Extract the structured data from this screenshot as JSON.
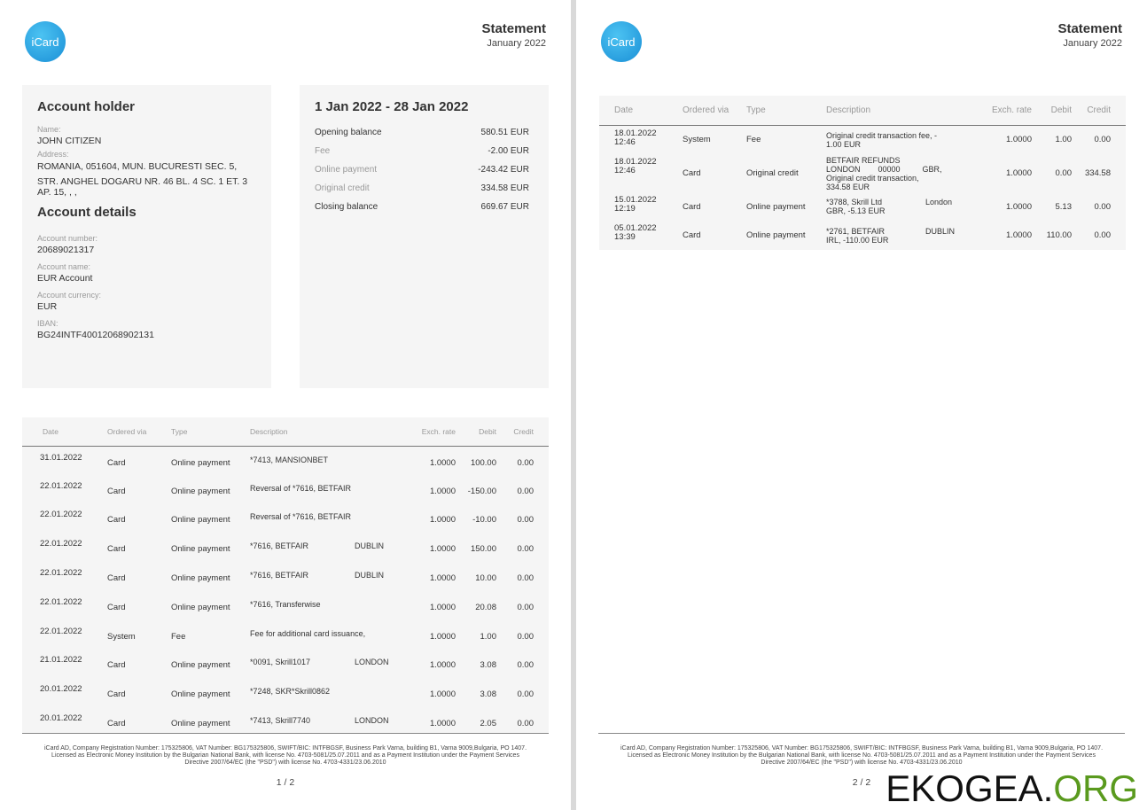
{
  "header": {
    "logo": "iCard",
    "title": "Statement",
    "month": "January 2022"
  },
  "account_holder": {
    "title": "Account holder",
    "name_label": "Name:",
    "name": "JOHN CITIZEN",
    "address_label": "Address:",
    "address_line1": "ROMANIA, 051604, MUN. BUCURESTI SEC. 5,",
    "address_line2": "STR. ANGHEL DOGARU NR. 46 BL. 4 SC. 1 ET. 3",
    "address_line3": "AP. 15, , ,"
  },
  "account_details": {
    "title": "Account details",
    "number_label": "Account number:",
    "number": "20689021317",
    "name_label": "Account name:",
    "name": "EUR Account",
    "currency_label": "Account currency:",
    "currency": "EUR",
    "iban_label": "IBAN:",
    "iban": "BG24INTF40012068902131"
  },
  "summary": {
    "period": "1 Jan 2022 - 28 Jan 2022",
    "rows": [
      {
        "label": "Opening balance",
        "value": "580.51 EUR",
        "muted": false
      },
      {
        "label": "Fee",
        "value": "-2.00 EUR",
        "muted": true
      },
      {
        "label": "Online payment",
        "value": "-243.42 EUR",
        "muted": true
      },
      {
        "label": "Original credit",
        "value": "334.58 EUR",
        "muted": true
      },
      {
        "label": "Closing balance",
        "value": "669.67 EUR",
        "muted": false
      }
    ]
  },
  "columns": [
    "Date",
    "Ordered via",
    "Type",
    "Description",
    "Exch. rate",
    "Debit",
    "Credit"
  ],
  "page1_rows": [
    [
      "31.01.2022",
      "Card",
      "Online payment",
      "*7413, MANSIONBET",
      "",
      "1.0000",
      "100.00",
      "0.00"
    ],
    [
      "22.01.2022",
      "Card",
      "Online payment",
      "Reversal of *7616, BETFAIR",
      "",
      "1.0000",
      "-150.00",
      "0.00"
    ],
    [
      "22.01.2022",
      "Card",
      "Online payment",
      "Reversal of *7616, BETFAIR",
      "",
      "1.0000",
      "-10.00",
      "0.00"
    ],
    [
      "22.01.2022",
      "Card",
      "Online payment",
      "*7616, BETFAIR",
      "DUBLIN",
      "1.0000",
      "150.00",
      "0.00"
    ],
    [
      "22.01.2022",
      "Card",
      "Online payment",
      "*7616, BETFAIR",
      "DUBLIN",
      "1.0000",
      "10.00",
      "0.00"
    ],
    [
      "22.01.2022",
      "Card",
      "Online payment",
      "*7616, Transferwise",
      "",
      "1.0000",
      "20.08",
      "0.00"
    ],
    [
      "22.01.2022",
      "System",
      "Fee",
      "Fee for additional card issuance,",
      "",
      "1.0000",
      "1.00",
      "0.00"
    ],
    [
      "21.01.2022",
      "Card",
      "Online payment",
      "*0091, Skrill1017",
      "LONDON",
      "1.0000",
      "3.08",
      "0.00"
    ],
    [
      "20.01.2022",
      "Card",
      "Online payment",
      "*7248, SKR*Skrill0862",
      "",
      "1.0000",
      "3.08",
      "0.00"
    ],
    [
      "20.01.2022",
      "Card",
      "Online payment",
      "*7413, Skrill7740",
      "LONDON",
      "1.0000",
      "2.05",
      "0.00"
    ]
  ],
  "page2_rows": [
    [
      "18.01.2022\n12:46",
      "System",
      "Fee",
      "Original credit transaction fee, -\n1.00 EUR",
      "",
      "1.0000",
      "1.00",
      "0.00"
    ],
    [
      "18.01.2022\n12:46",
      "Card",
      "Original credit",
      "BETFAIR REFUNDS\nLONDON        00000          GBR,\nOriginal credit transaction,\n334.58 EUR",
      "",
      "1.0000",
      "0.00",
      "334.58"
    ],
    [
      "15.01.2022\n12:19",
      "Card",
      "Online payment",
      "*3788, Skrill Ltd\nGBR, -5.13 EUR",
      "London",
      "1.0000",
      "5.13",
      "0.00"
    ],
    [
      "05.01.2022\n13:39",
      "Card",
      "Online payment",
      "*2761, BETFAIR\nIRL, -110.00 EUR",
      "DUBLIN",
      "1.0000",
      "110.00",
      "0.00"
    ]
  ],
  "footer": {
    "line1": "iCard AD, Company Registration Number: 175325806, VAT Number: BG175325806, SWIFT/BIC: INTFBGSF, Business Park Varna, building B1, Varna 9009,Bulgaria, PO 1407.",
    "line2": "Licensed as Electronic Money Institution by the Bulgarian National Bank, with license No. 4703-5081/25.07.2011 and as a Payment Institution under the Payment Services",
    "line3": "Directive 2007/64/EC (the \"PSD\") with license No. 4703-4331/23.06.2010",
    "page1": "1 / 2",
    "page2": "2 / 2"
  },
  "watermark": {
    "part1": "EKOGEA.",
    "part2": "ORG",
    "color1": "#111111",
    "color2": "#5a9a1e"
  }
}
